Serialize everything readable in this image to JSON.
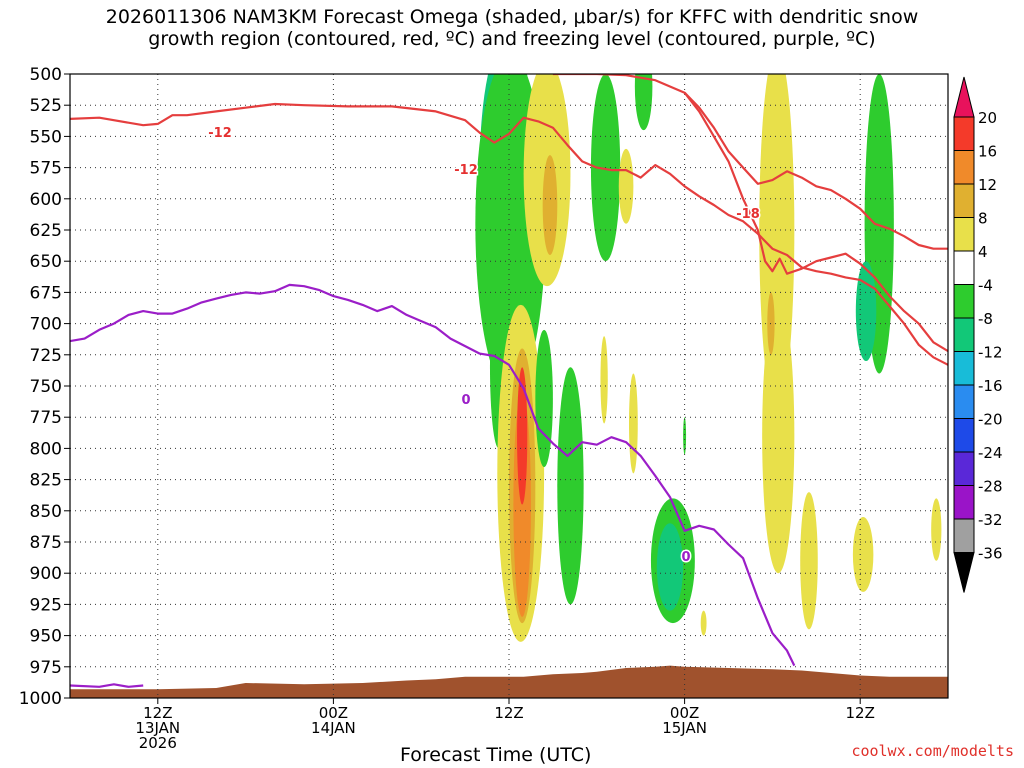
{
  "header": {
    "title_line1": "2026011306 NAM3KM Forecast Omega (shaded, μbar/s) for KFFC with dendritic snow",
    "title_line2": "growth region (contoured, red, ºC) and freezing level (contoured, purple, ºC)"
  },
  "footer": {
    "x_title": "Forecast Time (UTC)",
    "credit": "coolwx.com/modelts"
  },
  "chart_data": {
    "type": "time-height cross section",
    "y_ticks": [
      500,
      525,
      550,
      575,
      600,
      625,
      650,
      675,
      700,
      725,
      750,
      775,
      800,
      825,
      850,
      875,
      900,
      925,
      950,
      975,
      1000
    ],
    "y_range": [
      500,
      1000
    ],
    "y_units": "hPa",
    "x_range_hours": [
      0,
      60
    ],
    "x_ticks": [
      {
        "hour": 6,
        "labels": [
          "12Z",
          "13JAN",
          "2026"
        ]
      },
      {
        "hour": 18,
        "labels": [
          "00Z",
          "14JAN"
        ]
      },
      {
        "hour": 30,
        "labels": [
          "12Z"
        ]
      },
      {
        "hour": 42,
        "labels": [
          "00Z",
          "15JAN"
        ]
      },
      {
        "hour": 54,
        "labels": [
          "12Z"
        ]
      }
    ],
    "grid": true,
    "colorbar": {
      "labels": [
        "20",
        "16",
        "12",
        "8",
        "4",
        "-4",
        "-8",
        "-12",
        "-16",
        "-20",
        "-24",
        "-28",
        "-32",
        "-36"
      ],
      "colors": [
        "#e8125c",
        "#f43a2a",
        "#f08a2a",
        "#e0b030",
        "#e8e04a",
        "#ffffff",
        "#2ecc2e",
        "#12c878",
        "#18bcd8",
        "#2a8cf0",
        "#1e4ae8",
        "#5a28d8",
        "#9a14c8",
        "#a0a0a0",
        "#000000"
      ]
    },
    "contour_labels": [
      {
        "text": "-12",
        "color": "#e53030"
      },
      {
        "text": "-12",
        "color": "#e53030"
      },
      {
        "text": "-18",
        "color": "#e53030"
      },
      {
        "text": "0",
        "color": "#9b1ec8"
      },
      {
        "text": "0",
        "color": "#9b1ec8"
      }
    ],
    "dgz_upper_12": [
      [
        0,
        536
      ],
      [
        2,
        535
      ],
      [
        5,
        541
      ],
      [
        6,
        540
      ],
      [
        7,
        533
      ],
      [
        8,
        533
      ],
      [
        10,
        530
      ],
      [
        12,
        527
      ],
      [
        14,
        524
      ],
      [
        16,
        525
      ],
      [
        19,
        526
      ],
      [
        22,
        526
      ],
      [
        25,
        530
      ],
      [
        27,
        537
      ],
      [
        28,
        547
      ],
      [
        29,
        555
      ],
      [
        30,
        548
      ],
      [
        31,
        535
      ],
      [
        32,
        538
      ],
      [
        33,
        543
      ],
      [
        34,
        557
      ],
      [
        35,
        570
      ],
      [
        36,
        575
      ],
      [
        37,
        577
      ],
      [
        38,
        577
      ],
      [
        39,
        583
      ],
      [
        40,
        573
      ],
      [
        41,
        580
      ],
      [
        42,
        590
      ],
      [
        43,
        598
      ],
      [
        44,
        605
      ],
      [
        45,
        613
      ],
      [
        46,
        618
      ],
      [
        47,
        628
      ],
      [
        48,
        640
      ],
      [
        49,
        645
      ],
      [
        50,
        655
      ],
      [
        51,
        658
      ],
      [
        52,
        660
      ],
      [
        53,
        663
      ],
      [
        54,
        665
      ],
      [
        55,
        672
      ],
      [
        56,
        686
      ],
      [
        57,
        700
      ],
      [
        58,
        717
      ],
      [
        59,
        727
      ],
      [
        60,
        733
      ]
    ],
    "dgz_lower_18": [
      [
        33,
        500
      ],
      [
        36,
        500
      ],
      [
        38,
        501
      ],
      [
        40,
        505
      ],
      [
        42,
        515
      ],
      [
        43,
        527
      ],
      [
        44,
        543
      ],
      [
        45,
        562
      ],
      [
        46,
        575
      ],
      [
        47,
        588
      ],
      [
        48,
        585
      ],
      [
        49,
        578
      ],
      [
        50,
        583
      ],
      [
        51,
        590
      ],
      [
        52,
        593
      ],
      [
        53,
        600
      ],
      [
        54,
        608
      ],
      [
        55,
        620
      ],
      [
        56,
        624
      ],
      [
        57,
        630
      ],
      [
        58,
        637
      ],
      [
        59,
        640
      ],
      [
        60,
        640
      ]
    ],
    "dgz_dendritic_lower": [
      [
        42,
        515
      ],
      [
        43,
        530
      ],
      [
        44,
        550
      ],
      [
        45,
        570
      ],
      [
        46,
        600
      ],
      [
        47,
        625
      ],
      [
        47.5,
        650
      ],
      [
        48,
        658
      ],
      [
        48.5,
        648
      ],
      [
        49,
        660
      ],
      [
        50,
        656
      ],
      [
        51,
        650
      ],
      [
        52,
        647
      ],
      [
        53,
        644
      ],
      [
        54,
        652
      ],
      [
        55,
        663
      ],
      [
        56,
        678
      ],
      [
        57,
        690
      ],
      [
        58,
        700
      ],
      [
        59,
        715
      ],
      [
        60,
        722
      ]
    ],
    "freezing_level_0": [
      [
        0,
        714
      ],
      [
        1,
        712
      ],
      [
        2,
        705
      ],
      [
        3,
        700
      ],
      [
        4,
        693
      ],
      [
        5,
        690
      ],
      [
        6,
        692
      ],
      [
        7,
        692
      ],
      [
        8,
        688
      ],
      [
        9,
        683
      ],
      [
        10,
        680
      ],
      [
        11,
        677
      ],
      [
        12,
        675
      ],
      [
        13,
        676
      ],
      [
        14,
        674
      ],
      [
        15,
        669
      ],
      [
        16,
        670
      ],
      [
        17,
        673
      ],
      [
        18,
        678
      ],
      [
        19,
        681
      ],
      [
        20,
        685
      ],
      [
        21,
        690
      ],
      [
        22,
        686
      ],
      [
        23,
        693
      ],
      [
        24,
        698
      ],
      [
        25,
        703
      ],
      [
        26,
        712
      ],
      [
        27,
        718
      ],
      [
        28,
        724
      ],
      [
        29,
        726
      ],
      [
        30,
        733
      ],
      [
        31,
        752
      ],
      [
        32,
        784
      ],
      [
        33,
        796
      ],
      [
        34,
        806
      ],
      [
        35,
        795
      ],
      [
        36,
        797
      ],
      [
        37,
        791
      ],
      [
        38,
        795
      ],
      [
        39,
        806
      ],
      [
        40,
        822
      ],
      [
        41,
        839
      ],
      [
        42,
        866
      ],
      [
        43,
        862
      ],
      [
        44,
        865
      ],
      [
        45,
        877
      ],
      [
        46,
        888
      ],
      [
        47,
        920
      ],
      [
        48,
        948
      ],
      [
        49,
        962
      ],
      [
        49.5,
        974
      ]
    ],
    "freezing_level_0_surface": [
      [
        0,
        990
      ],
      [
        2,
        991
      ],
      [
        3,
        989
      ],
      [
        4,
        991
      ],
      [
        5,
        990
      ]
    ],
    "terrain_pressure": [
      [
        0,
        993
      ],
      [
        6,
        993
      ],
      [
        10,
        992
      ],
      [
        12,
        988
      ],
      [
        16,
        989
      ],
      [
        20,
        988
      ],
      [
        23,
        986
      ],
      [
        25,
        985
      ],
      [
        27,
        983
      ],
      [
        29,
        983
      ],
      [
        31,
        983
      ],
      [
        33,
        981
      ],
      [
        35,
        980
      ],
      [
        36,
        979
      ],
      [
        38,
        976
      ],
      [
        40,
        975
      ],
      [
        41,
        974
      ],
      [
        42,
        975
      ],
      [
        45,
        976
      ],
      [
        48,
        977
      ],
      [
        50,
        978
      ],
      [
        52,
        980
      ],
      [
        54,
        982
      ],
      [
        56,
        983
      ],
      [
        58,
        983
      ],
      [
        60,
        983
      ]
    ],
    "omega_shading_blobs": [
      {
        "hour": 30.0,
        "p": 570,
        "dh": 1.3,
        "dp": 90,
        "level": "-12"
      },
      {
        "hour": 30.0,
        "p": 590,
        "dh": 1.1,
        "dp": 70,
        "level": "-16"
      },
      {
        "hour": 29.9,
        "p": 575,
        "dh": 1.9,
        "dp": 105,
        "level": "-8"
      },
      {
        "hour": 30.1,
        "p": 620,
        "dh": 2.4,
        "dp": 135,
        "level": "-4"
      },
      {
        "hour": 32.6,
        "p": 580,
        "dh": 1.6,
        "dp": 90,
        "level": "4"
      },
      {
        "hour": 32.8,
        "p": 605,
        "dh": 0.5,
        "dp": 40,
        "level": "8"
      },
      {
        "hour": 36.6,
        "p": 575,
        "dh": 1.0,
        "dp": 75,
        "level": "-4"
      },
      {
        "hour": 38.0,
        "p": 590,
        "dh": 0.5,
        "dp": 30,
        "level": "4"
      },
      {
        "hour": 39.2,
        "p": 510,
        "dh": 0.6,
        "dp": 35,
        "level": "-4"
      },
      {
        "hour": 48.3,
        "p": 625,
        "dh": 1.2,
        "dp": 145,
        "level": "4"
      },
      {
        "hour": 48.4,
        "p": 790,
        "dh": 1.1,
        "dp": 110,
        "level": "4"
      },
      {
        "hour": 47.9,
        "p": 700,
        "dh": 0.25,
        "dp": 25,
        "level": "8"
      },
      {
        "hour": 55.3,
        "p": 620,
        "dh": 1.0,
        "dp": 120,
        "level": "-4"
      },
      {
        "hour": 54.4,
        "p": 690,
        "dh": 0.7,
        "dp": 40,
        "level": "-8"
      },
      {
        "hour": 29.3,
        "p": 735,
        "dh": 0.6,
        "dp": 65,
        "level": "-4"
      },
      {
        "hour": 30.8,
        "p": 820,
        "dh": 1.6,
        "dp": 135,
        "level": "4"
      },
      {
        "hour": 30.9,
        "p": 830,
        "dh": 0.9,
        "dp": 110,
        "level": "8"
      },
      {
        "hour": 30.9,
        "p": 845,
        "dh": 0.6,
        "dp": 90,
        "level": "12"
      },
      {
        "hour": 30.9,
        "p": 790,
        "dh": 0.35,
        "dp": 55,
        "level": "16"
      },
      {
        "hour": 32.4,
        "p": 760,
        "dh": 0.6,
        "dp": 55,
        "level": "-4"
      },
      {
        "hour": 34.2,
        "p": 830,
        "dh": 0.9,
        "dp": 95,
        "level": "-4"
      },
      {
        "hour": 41.2,
        "p": 890,
        "dh": 1.5,
        "dp": 50,
        "level": "-4"
      },
      {
        "hour": 41.0,
        "p": 895,
        "dh": 0.9,
        "dp": 35,
        "level": "-8"
      },
      {
        "hour": 36.5,
        "p": 745,
        "dh": 0.25,
        "dp": 35,
        "level": "4"
      },
      {
        "hour": 38.5,
        "p": 780,
        "dh": 0.3,
        "dp": 40,
        "level": "4"
      },
      {
        "hour": 43.3,
        "p": 940,
        "dh": 0.2,
        "dp": 10,
        "level": "4"
      },
      {
        "hour": 50.5,
        "p": 890,
        "dh": 0.6,
        "dp": 55,
        "level": "4"
      },
      {
        "hour": 54.2,
        "p": 885,
        "dh": 0.7,
        "dp": 30,
        "level": "4"
      },
      {
        "hour": 59.2,
        "p": 865,
        "dh": 0.35,
        "dp": 25,
        "level": "4"
      },
      {
        "hour": 42.0,
        "p": 790,
        "dh": 0.1,
        "dp": 15,
        "level": "-4"
      }
    ]
  }
}
